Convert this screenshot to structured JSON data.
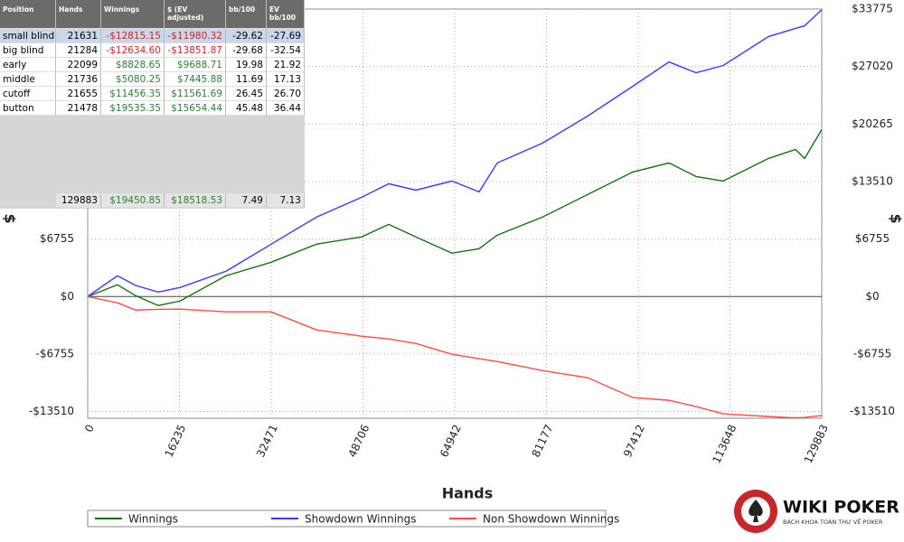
{
  "chart_data": {
    "type": "line",
    "x_label": "Hands",
    "y_label": "$",
    "xlim": [
      0,
      129883
    ],
    "xticks": [
      0,
      16235,
      32471,
      48706,
      64942,
      81177,
      97412,
      113648,
      129883
    ],
    "ylim": [
      -14300,
      33775
    ],
    "yticks": [
      {
        "value": -13510,
        "label": "-$13510"
      },
      {
        "value": -6755,
        "label": "-$6755"
      },
      {
        "value": 0,
        "label": "$0"
      },
      {
        "value": 6755,
        "label": "$6755"
      },
      {
        "value": 13510,
        "label": "$13510"
      },
      {
        "value": 20265,
        "label": "$20265"
      },
      {
        "value": 27020,
        "label": "$27020"
      },
      {
        "value": 33775,
        "label": "$33775"
      }
    ],
    "grid": true,
    "x": [
      0,
      5278,
      8478,
      12477,
      16315,
      24473,
      32471,
      40469,
      48466,
      53265,
      58064,
      64462,
      69261,
      72460,
      80458,
      88455,
      96453,
      102851,
      107650,
      112449,
      120446,
      125245,
      126845,
      129883
    ],
    "series": [
      {
        "name": "Winnings",
        "color": "#1a6e1a",
        "values": [
          0,
          1380,
          100,
          -1060,
          -530,
          2440,
          4030,
          6150,
          7000,
          8480,
          7000,
          5090,
          5620,
          7210,
          9330,
          11980,
          14630,
          15690,
          14100,
          13570,
          16220,
          17280,
          16220,
          19610
        ]
      },
      {
        "name": "Showdown Winnings",
        "color": "#3a3aff",
        "values": [
          0,
          2440,
          1300,
          530,
          1060,
          2970,
          6150,
          9330,
          11660,
          13250,
          12500,
          13570,
          12300,
          15690,
          18020,
          21200,
          24700,
          27560,
          26290,
          27140,
          30530,
          31500,
          31800,
          33700
        ]
      },
      {
        "name": "Non Showdown Winnings",
        "color": "#ff4a4a",
        "values": [
          0,
          -740,
          -1590,
          -1500,
          -1480,
          -1800,
          -1800,
          -3920,
          -4660,
          -4980,
          -5510,
          -6780,
          -7300,
          -7630,
          -8690,
          -9540,
          -11870,
          -12190,
          -12930,
          -13780,
          -14100,
          -14250,
          -14200,
          -13990
        ]
      }
    ]
  },
  "table": {
    "headers": [
      "Position",
      "Hands",
      "Winnings",
      "$ (EV adjusted)",
      "bb/100",
      "EV bb/100"
    ],
    "rows": [
      [
        "small blind",
        "21631",
        "-$12815.15",
        "-$11980.32",
        "-29.62",
        "-27.69"
      ],
      [
        "big blind",
        "21284",
        "-$12634.60",
        "-$13851.87",
        "-29.68",
        "-32.54"
      ],
      [
        "early",
        "22099",
        "$8828.65",
        "$9688.71",
        "19.98",
        "21.92"
      ],
      [
        "middle",
        "21736",
        "$5080.25",
        "$7445.88",
        "11.69",
        "17.13"
      ],
      [
        "cutoff",
        "21655",
        "$11456.35",
        "$11561.69",
        "26.45",
        "26.70"
      ],
      [
        "button",
        "21478",
        "$19535.35",
        "$15654.44",
        "45.48",
        "36.44"
      ]
    ],
    "total": [
      "129883",
      "$19450.85",
      "$18518.53",
      "7.49",
      "7.13"
    ]
  },
  "logo": {
    "title": "WIKI POKER",
    "subtitle": "BÁCH KHOA TOÀN THƯ VỀ POKER"
  }
}
